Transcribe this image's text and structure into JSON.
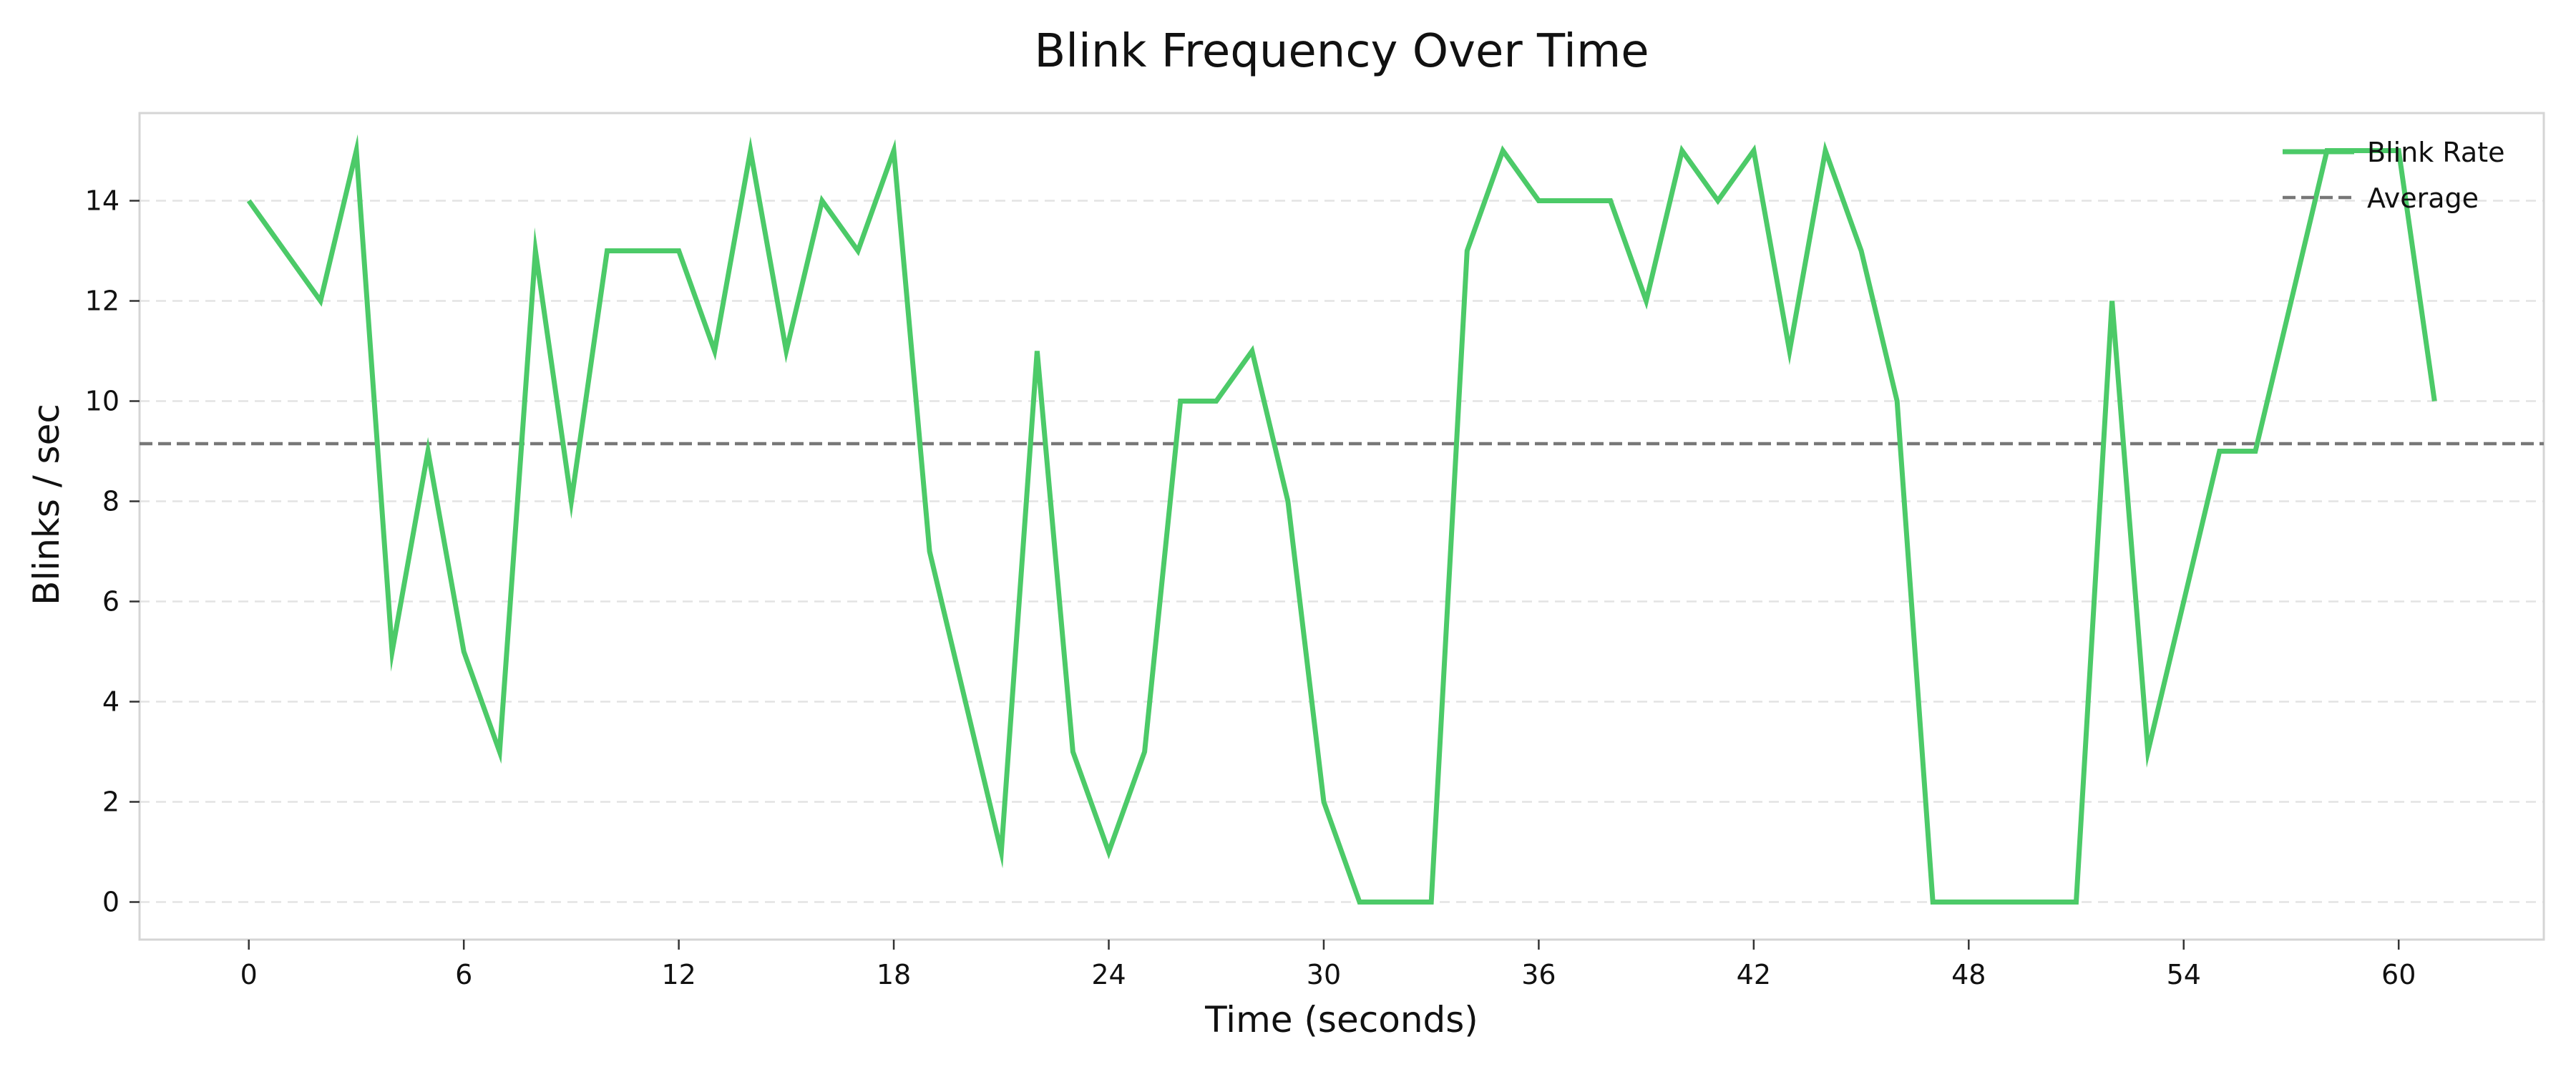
{
  "chart_data": {
    "type": "line",
    "title": "Blink Frequency Over Time",
    "xlabel": "Time (seconds)",
    "ylabel": "Blinks / sec",
    "xlim": [
      -3.05,
      64.05
    ],
    "ylim": [
      -0.75,
      15.75
    ],
    "xticks": [
      0,
      6,
      12,
      18,
      24,
      30,
      36,
      42,
      48,
      54,
      60
    ],
    "yticks": [
      0,
      2,
      4,
      6,
      8,
      10,
      12,
      14
    ],
    "grid": "horizontal dashed",
    "legend_position": "top-right",
    "series": [
      {
        "name": "Blink Rate",
        "color": "#4cca68",
        "style": "solid",
        "x": [
          0,
          1,
          2,
          3,
          4,
          5,
          6,
          7,
          8,
          9,
          10,
          11,
          12,
          13,
          14,
          15,
          16,
          17,
          18,
          19,
          20,
          21,
          22,
          23,
          24,
          25,
          26,
          27,
          28,
          29,
          30,
          31,
          32,
          33,
          34,
          35,
          36,
          37,
          38,
          39,
          40,
          41,
          42,
          43,
          44,
          45,
          46,
          47,
          48,
          49,
          50,
          51,
          52,
          53,
          54,
          55,
          56,
          57,
          58,
          59,
          60,
          61
        ],
        "values": [
          14,
          13,
          12,
          15,
          5,
          9,
          5,
          3,
          13,
          8,
          13,
          13,
          13,
          11,
          15,
          11,
          14,
          13,
          15,
          7,
          4,
          1,
          11,
          3,
          1,
          3,
          10,
          10,
          11,
          8,
          2,
          0,
          0,
          0,
          13,
          15,
          14,
          14,
          14,
          12,
          15,
          14,
          15,
          11,
          15,
          13,
          10,
          0,
          0,
          0,
          0,
          0,
          12,
          3,
          6,
          9,
          9,
          12,
          15,
          15,
          15,
          10
        ]
      },
      {
        "name": "Average",
        "color": "#777777",
        "style": "dashed",
        "values": [
          9.15
        ]
      }
    ]
  }
}
